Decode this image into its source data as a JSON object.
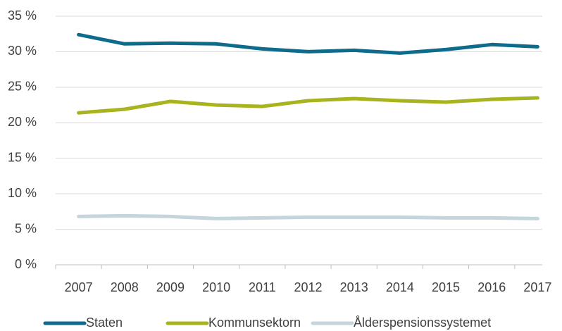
{
  "chart_data": {
    "type": "line",
    "categories": [
      "2007",
      "2008",
      "2009",
      "2010",
      "2011",
      "2012",
      "2013",
      "2014",
      "2015",
      "2016",
      "2017"
    ],
    "series": [
      {
        "name": "Staten",
        "color": "#0f6b8c",
        "values": [
          32.4,
          31.1,
          31.2,
          31.1,
          30.4,
          30.0,
          30.2,
          29.8,
          30.3,
          31.0,
          30.7
        ]
      },
      {
        "name": "Kommunsektorn",
        "color": "#a8b41e",
        "values": [
          21.4,
          21.9,
          23.0,
          22.5,
          22.3,
          23.1,
          23.4,
          23.1,
          22.9,
          23.3,
          23.5
        ]
      },
      {
        "name": "Ålderspensionssystemet",
        "color": "#c5d5dc",
        "values": [
          6.8,
          6.9,
          6.8,
          6.5,
          6.6,
          6.7,
          6.7,
          6.7,
          6.6,
          6.6,
          6.5
        ]
      }
    ],
    "ylim": [
      0,
      35
    ],
    "yticks": [
      {
        "value": 0,
        "label": "0 %"
      },
      {
        "value": 5,
        "label": "5 %"
      },
      {
        "value": 10,
        "label": "10 %"
      },
      {
        "value": 15,
        "label": "15 %"
      },
      {
        "value": 20,
        "label": "20 %"
      },
      {
        "value": 25,
        "label": "25 %"
      },
      {
        "value": 30,
        "label": "30 %"
      },
      {
        "value": 35,
        "label": "35 %"
      }
    ],
    "grid": true,
    "legend": "bottom"
  }
}
